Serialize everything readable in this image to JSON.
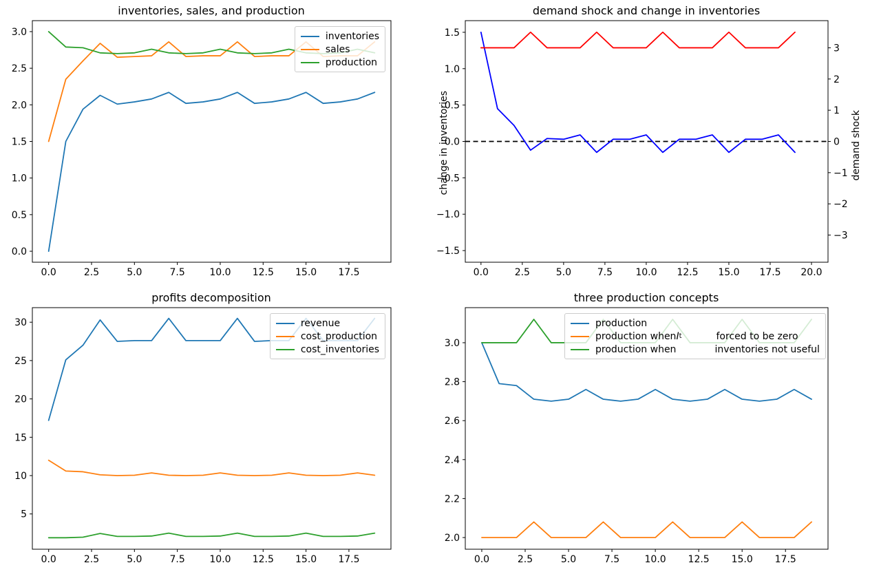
{
  "figure": {
    "background": "#ffffff"
  },
  "colors": {
    "c0": "#1f77b4",
    "c1": "#ff7f0e",
    "c2": "#2ca02c",
    "blue": "#0000ff",
    "red": "#ff0000",
    "black": "#000000"
  },
  "chart_data": [
    {
      "id": "p1",
      "type": "line",
      "title": "inventories, sales, and production",
      "x": [
        0,
        1,
        2,
        3,
        4,
        5,
        6,
        7,
        8,
        9,
        10,
        11,
        12,
        13,
        14,
        15,
        16,
        17,
        18,
        19
      ],
      "xlim": [
        -0.95,
        19.95
      ],
      "ylim": [
        -0.15,
        3.15
      ],
      "xticks": {
        "values": [
          0,
          2.5,
          5,
          7.5,
          10,
          12.5,
          15,
          17.5
        ],
        "labels": [
          "0.0",
          "2.5",
          "5.0",
          "7.5",
          "10.0",
          "12.5",
          "15.0",
          "17.5"
        ]
      },
      "yticks": {
        "values": [
          0,
          0.5,
          1,
          1.5,
          2,
          2.5,
          3
        ],
        "labels": [
          "0.0",
          "0.5",
          "1.0",
          "1.5",
          "2.0",
          "2.5",
          "3.0"
        ]
      },
      "grid": false,
      "legend_position": "upper right",
      "series": [
        {
          "name": "inventories",
          "color_key": "c0",
          "values": [
            0.0,
            1.5,
            1.94,
            2.13,
            2.01,
            2.04,
            2.08,
            2.17,
            2.02,
            2.04,
            2.08,
            2.17,
            2.02,
            2.04,
            2.08,
            2.17,
            2.02,
            2.04,
            2.08,
            2.17
          ]
        },
        {
          "name": "sales",
          "color_key": "c1",
          "values": [
            1.5,
            2.35,
            2.6,
            2.84,
            2.65,
            2.66,
            2.67,
            2.86,
            2.66,
            2.67,
            2.67,
            2.86,
            2.66,
            2.67,
            2.67,
            2.86,
            2.66,
            2.67,
            2.67,
            2.86
          ]
        },
        {
          "name": "production",
          "color_key": "c2",
          "values": [
            3.0,
            2.79,
            2.78,
            2.71,
            2.7,
            2.71,
            2.76,
            2.71,
            2.7,
            2.71,
            2.76,
            2.71,
            2.7,
            2.71,
            2.76,
            2.71,
            2.7,
            2.71,
            2.76,
            2.71
          ]
        }
      ],
      "legend": [
        {
          "color_key": "c0",
          "segments": [
            {
              "t": "inventories"
            }
          ]
        },
        {
          "color_key": "c1",
          "segments": [
            {
              "t": "sales"
            }
          ]
        },
        {
          "color_key": "c2",
          "segments": [
            {
              "t": "production"
            }
          ]
        }
      ]
    },
    {
      "id": "p2",
      "type": "line",
      "title": "demand shock and change in inventories",
      "ylabel_left": "change in inventories",
      "ylabel_right": "demand shock",
      "x": [
        0,
        1,
        2,
        3,
        4,
        5,
        6,
        7,
        8,
        9,
        10,
        11,
        12,
        13,
        14,
        15,
        16,
        17,
        18,
        19
      ],
      "xlim": [
        -0.95,
        21.0
      ],
      "ylim": [
        -1.66,
        1.66
      ],
      "ylim_right": [
        -3.87,
        3.87
      ],
      "xticks": {
        "values": [
          0,
          2.5,
          5,
          7.5,
          10,
          12.5,
          15,
          17.5,
          20
        ],
        "labels": [
          "0.0",
          "2.5",
          "5.0",
          "7.5",
          "10.0",
          "12.5",
          "15.0",
          "17.5",
          "20.0"
        ]
      },
      "yticks": {
        "values": [
          -1.5,
          -1,
          -0.5,
          0,
          0.5,
          1,
          1.5
        ],
        "labels": [
          "−1.5",
          "−1.0",
          "−0.5",
          "0.0",
          "0.5",
          "1.0",
          "1.5"
        ]
      },
      "yticks_right": {
        "values": [
          -3,
          -2,
          -1,
          0,
          1,
          2,
          3
        ],
        "labels": [
          "−3",
          "−2",
          "−1",
          "0",
          "1",
          "2",
          "3"
        ]
      },
      "zero_line": {
        "y": 0,
        "dashed": true,
        "color_key": "black"
      },
      "grid": false,
      "series": [
        {
          "name": "change in inventories",
          "axis": "left",
          "color_key": "blue",
          "values": [
            1.5,
            0.45,
            0.22,
            -0.12,
            0.04,
            0.03,
            0.09,
            -0.15,
            0.03,
            0.03,
            0.09,
            -0.15,
            0.03,
            0.03,
            0.09,
            -0.15,
            0.03,
            0.03,
            0.09,
            -0.15
          ]
        },
        {
          "name": "demand shock",
          "axis": "right",
          "color_key": "red",
          "values": [
            3,
            3,
            3,
            3.5,
            3,
            3,
            3,
            3.5,
            3,
            3,
            3,
            3.5,
            3,
            3,
            3,
            3.5,
            3,
            3,
            3,
            3.5
          ]
        }
      ],
      "legend": []
    },
    {
      "id": "p3",
      "type": "line",
      "title": "profits decomposition",
      "x": [
        0,
        1,
        2,
        3,
        4,
        5,
        6,
        7,
        8,
        9,
        10,
        11,
        12,
        13,
        14,
        15,
        16,
        17,
        18,
        19
      ],
      "xlim": [
        -0.95,
        19.95
      ],
      "ylim": [
        0.4,
        31.9
      ],
      "xticks": {
        "values": [
          0,
          2.5,
          5,
          7.5,
          10,
          12.5,
          15,
          17.5
        ],
        "labels": [
          "0.0",
          "2.5",
          "5.0",
          "7.5",
          "10.0",
          "12.5",
          "15.0",
          "17.5"
        ]
      },
      "yticks": {
        "values": [
          5,
          10,
          15,
          20,
          25,
          30
        ],
        "labels": [
          "5",
          "10",
          "15",
          "20",
          "25",
          "30"
        ]
      },
      "grid": false,
      "legend_position": "upper right",
      "series": [
        {
          "name": "revenue",
          "color_key": "c0",
          "values": [
            17.2,
            25.1,
            27.0,
            30.3,
            27.5,
            27.6,
            27.6,
            30.5,
            27.6,
            27.6,
            27.6,
            30.5,
            27.5,
            27.6,
            27.6,
            30.5,
            27.6,
            27.6,
            27.6,
            30.5
          ]
        },
        {
          "name": "cost_production",
          "color_key": "c1",
          "values": [
            12.0,
            10.6,
            10.5,
            10.1,
            10.0,
            10.05,
            10.35,
            10.05,
            10.0,
            10.05,
            10.35,
            10.05,
            10.0,
            10.05,
            10.35,
            10.05,
            10.0,
            10.05,
            10.35,
            10.05
          ]
        },
        {
          "name": "cost_inventories",
          "color_key": "c2",
          "values": [
            1.9,
            1.9,
            1.97,
            2.45,
            2.07,
            2.07,
            2.12,
            2.5,
            2.07,
            2.07,
            2.12,
            2.5,
            2.07,
            2.07,
            2.12,
            2.5,
            2.07,
            2.07,
            2.12,
            2.5
          ]
        }
      ],
      "legend": [
        {
          "color_key": "c0",
          "segments": [
            {
              "t": "revenue"
            }
          ]
        },
        {
          "color_key": "c1",
          "segments": [
            {
              "t": "cost_production"
            }
          ]
        },
        {
          "color_key": "c2",
          "segments": [
            {
              "t": "cost_inventories"
            }
          ]
        }
      ]
    },
    {
      "id": "p4",
      "type": "line",
      "title": "three production concepts",
      "x": [
        0,
        1,
        2,
        3,
        4,
        5,
        6,
        7,
        8,
        9,
        10,
        11,
        12,
        13,
        14,
        15,
        16,
        17,
        18,
        19
      ],
      "xlim": [
        -0.95,
        19.95
      ],
      "ylim": [
        1.94,
        3.18
      ],
      "xticks": {
        "values": [
          0,
          2.5,
          5,
          7.5,
          10,
          12.5,
          15,
          17.5
        ],
        "labels": [
          "0.0",
          "2.5",
          "5.0",
          "7.5",
          "10.0",
          "12.5",
          "15.0",
          "17.5"
        ]
      },
      "yticks": {
        "values": [
          2.0,
          2.2,
          2.4,
          2.6,
          2.8,
          3.0
        ],
        "labels": [
          "2.0",
          "2.2",
          "2.4",
          "2.6",
          "2.8",
          "3.0"
        ]
      },
      "grid": false,
      "legend_position": "upper center",
      "series": [
        {
          "name": "production",
          "color_key": "c0",
          "values": [
            3.0,
            2.79,
            2.78,
            2.71,
            2.7,
            2.71,
            2.76,
            2.71,
            2.7,
            2.71,
            2.76,
            2.71,
            2.7,
            2.71,
            2.76,
            2.71,
            2.7,
            2.71,
            2.76,
            2.71
          ]
        },
        {
          "name": "production when I_t forced to be zero",
          "color_key": "c1",
          "values": [
            2.0,
            2.0,
            2.0,
            2.08,
            2.0,
            2.0,
            2.0,
            2.08,
            2.0,
            2.0,
            2.0,
            2.08,
            2.0,
            2.0,
            2.0,
            2.08,
            2.0,
            2.0,
            2.0,
            2.08
          ]
        },
        {
          "name": "production when inventories not useful",
          "color_key": "c2",
          "values": [
            3.0,
            3.0,
            3.0,
            3.12,
            3.0,
            3.0,
            3.0,
            3.12,
            3.0,
            3.0,
            3.0,
            3.12,
            3.0,
            3.0,
            3.0,
            3.12,
            3.0,
            3.0,
            3.0,
            3.12
          ]
        }
      ],
      "legend": [
        {
          "color_key": "c0",
          "segments": [
            {
              "t": "production"
            }
          ]
        },
        {
          "color_key": "c1",
          "segments": [
            {
              "t": "production when "
            },
            {
              "t": "I",
              "cls": "mi"
            },
            {
              "t": "t",
              "cls": "msub"
            },
            {
              "gap": 50
            },
            {
              "t": "forced to be zero"
            }
          ]
        },
        {
          "color_key": "c2",
          "segments": [
            {
              "t": "production when"
            },
            {
              "gap": 56
            },
            {
              "t": "inventories not useful"
            }
          ]
        }
      ]
    }
  ]
}
